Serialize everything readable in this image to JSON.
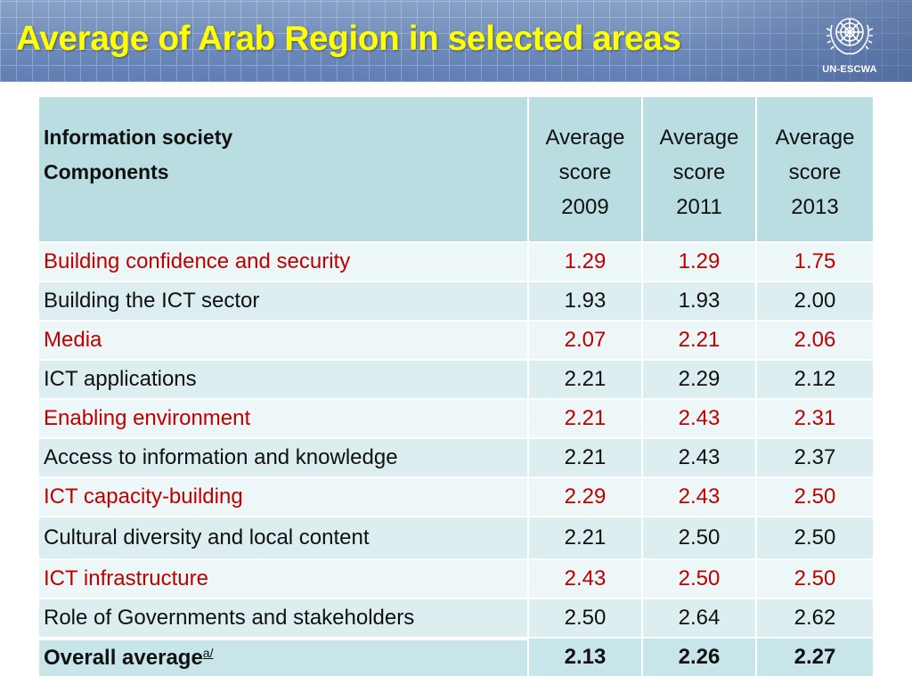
{
  "title": "Average of Arab Region in selected areas",
  "logo_text": "UN-ESCWA",
  "colors": {
    "title": "#ffff00",
    "highlight_text": "#c00000",
    "header_bg": "#b9dde0"
  },
  "table": {
    "header": {
      "label_line1": "Information society",
      "label_line2": "Components",
      "col1": [
        "Average",
        "score",
        "2009"
      ],
      "col2": [
        "Average",
        "score",
        "2011"
      ],
      "col3": [
        "Average",
        "score",
        "2013"
      ]
    },
    "rows": [
      {
        "label": "Building confidence and security",
        "v2009": "1.29",
        "v2011": "1.29",
        "v2013": "1.75",
        "highlight": true
      },
      {
        "label": "Building the ICT sector",
        "v2009": "1.93",
        "v2011": "1.93",
        "v2013": "2.00",
        "highlight": false
      },
      {
        "label": "Media",
        "v2009": "2.07",
        "v2011": "2.21",
        "v2013": "2.06",
        "highlight": true
      },
      {
        "label": "ICT applications",
        "v2009": "2.21",
        "v2011": "2.29",
        "v2013": "2.12",
        "highlight": false
      },
      {
        "label": "Enabling environment",
        "v2009": "2.21",
        "v2011": "2.43",
        "v2013": "2.31",
        "highlight": true
      },
      {
        "label": "Access to information and knowledge",
        "v2009": "2.21",
        "v2011": "2.43",
        "v2013": "2.37",
        "highlight": false
      },
      {
        "label": "ICT capacity-building",
        "v2009": "2.29",
        "v2011": "2.43",
        "v2013": "2.50",
        "highlight": true
      },
      {
        "label": "Cultural diversity and local content",
        "v2009": "2.21",
        "v2011": "2.50",
        "v2013": "2.50",
        "highlight": false
      },
      {
        "label": "ICT infrastructure",
        "v2009": "2.43",
        "v2011": "2.50",
        "v2013": "2.50",
        "highlight": true
      },
      {
        "label": "Role of Governments and stakeholders",
        "v2009": "2.50",
        "v2011": "2.64",
        "v2013": "2.62",
        "highlight": false
      }
    ],
    "total": {
      "label": "Overall average",
      "note": "a/",
      "v2009": "2.13",
      "v2011": "2.26",
      "v2013": "2.27"
    }
  }
}
